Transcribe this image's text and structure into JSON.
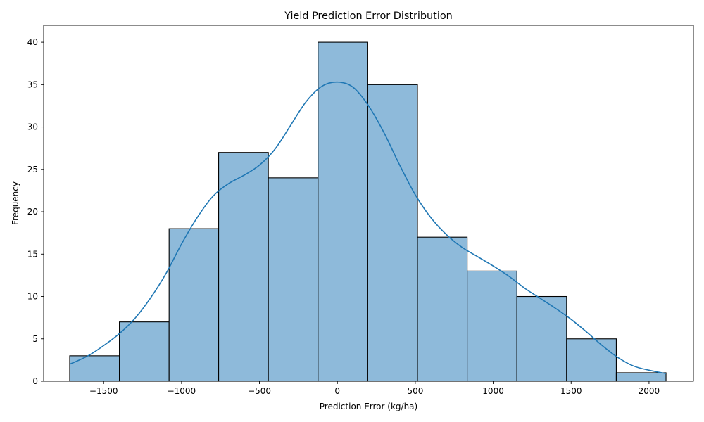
{
  "chart_data": {
    "type": "bar",
    "title": "Yield Prediction Error Distribution",
    "xlabel": "Prediction Error (kg/ha)",
    "ylabel": "Frequency",
    "bin_edges": [
      -1718,
      -1399,
      -1080,
      -762,
      -443,
      -124,
      195,
      514,
      833,
      1152,
      1471,
      1790,
      2109
    ],
    "values": [
      3,
      7,
      18,
      27,
      24,
      40,
      35,
      17,
      13,
      10,
      5,
      1
    ],
    "xlim": [
      -1885,
      2285
    ],
    "ylim": [
      0,
      42
    ],
    "xticks": [
      -1500,
      -1000,
      -500,
      0,
      500,
      1000,
      1500,
      2000
    ],
    "xtick_labels": [
      "−1500",
      "−1000",
      "−500",
      "0",
      "500",
      "1000",
      "1500",
      "2000"
    ],
    "yticks": [
      0,
      5,
      10,
      15,
      20,
      25,
      30,
      35,
      40
    ],
    "ytick_labels": [
      "0",
      "5",
      "10",
      "15",
      "20",
      "25",
      "30",
      "35",
      "40"
    ],
    "kde": {
      "x": [
        -1718,
        -1600,
        -1500,
        -1400,
        -1300,
        -1200,
        -1100,
        -1000,
        -900,
        -800,
        -700,
        -600,
        -500,
        -400,
        -300,
        -200,
        -100,
        0,
        100,
        200,
        300,
        400,
        500,
        600,
        700,
        800,
        900,
        1000,
        1100,
        1200,
        1300,
        1400,
        1500,
        1600,
        1700,
        1800,
        1900,
        2000,
        2109
      ],
      "y": [
        2.0,
        3.0,
        4.2,
        5.6,
        7.4,
        9.8,
        12.7,
        16.2,
        19.3,
        21.8,
        23.3,
        24.3,
        25.5,
        27.4,
        30.2,
        33.0,
        34.8,
        35.3,
        34.7,
        32.5,
        29.3,
        25.5,
        22.0,
        19.3,
        17.3,
        15.8,
        14.7,
        13.6,
        12.4,
        11.0,
        9.8,
        8.6,
        7.3,
        5.8,
        4.2,
        2.8,
        1.8,
        1.3,
        0.9
      ]
    },
    "colors": {
      "bar_fill": "#8ebada",
      "bar_edge": "#000000",
      "kde_line": "#1f77b4"
    },
    "grid": false,
    "legend": "none"
  }
}
